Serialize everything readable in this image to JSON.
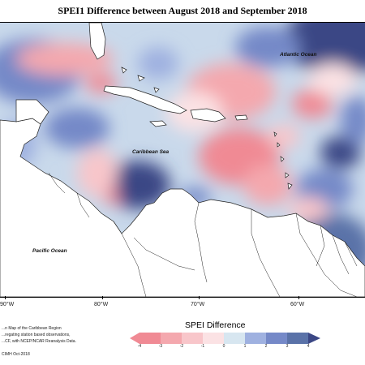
{
  "title": "SPEI1 Difference between August 2018 and September 2018",
  "ocean_labels": {
    "atlantic": "Atlantic Ocean",
    "caribbean": "Caribbean Sea",
    "pacific": "Pacific Ocean"
  },
  "longitude_labels": [
    "90°W",
    "80°W",
    "70°W",
    "60°W"
  ],
  "legend": {
    "title": "SPEI Difference",
    "ticks": [
      "-4",
      "-3",
      "-2",
      "-1",
      "0",
      "1",
      "2",
      "3",
      "4"
    ],
    "colors": [
      "#f08a94",
      "#f4a8ae",
      "#f8c6ca",
      "#fbe2e4",
      "#d7e6f0",
      "#9fb1e0",
      "#7589c8",
      "#5a72a8",
      "#3b4785"
    ]
  },
  "credits": {
    "line1": "...n Map of the Caribbean Region",
    "line2": "...regating station based observations,",
    "line3": "...CF, with NCEP/NCAR Reanalysis Data.",
    "line4": "CIMH Oct-2018"
  }
}
